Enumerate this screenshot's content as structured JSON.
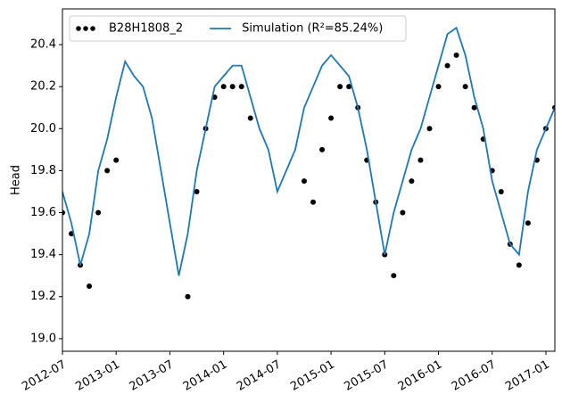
{
  "chart_data": {
    "type": "line",
    "ylabel": "Head",
    "x": [
      "2012-07",
      "2012-08",
      "2012-09",
      "2012-10",
      "2012-11",
      "2012-12",
      "2013-01",
      "2013-02",
      "2013-03",
      "2013-04",
      "2013-05",
      "2013-06",
      "2013-07",
      "2013-08",
      "2013-09",
      "2013-10",
      "2013-11",
      "2013-12",
      "2014-01",
      "2014-02",
      "2014-03",
      "2014-04",
      "2014-05",
      "2014-06",
      "2014-07",
      "2014-08",
      "2014-09",
      "2014-10",
      "2014-11",
      "2014-12",
      "2015-01",
      "2015-02",
      "2015-03",
      "2015-04",
      "2015-05",
      "2015-06",
      "2015-07",
      "2015-08",
      "2015-09",
      "2015-10",
      "2015-11",
      "2015-12",
      "2016-01",
      "2016-02",
      "2016-03",
      "2016-04",
      "2016-05",
      "2016-06",
      "2016-07",
      "2016-08",
      "2016-09",
      "2016-10",
      "2016-11",
      "2016-12",
      "2017-01",
      "2017-02"
    ],
    "series": [
      {
        "name": "B28H1808_2",
        "color": "#000000",
        "style": "dots",
        "values": [
          19.6,
          19.5,
          19.35,
          19.25,
          19.6,
          19.8,
          19.85,
          null,
          null,
          null,
          null,
          null,
          null,
          null,
          19.2,
          19.7,
          20.0,
          20.15,
          20.2,
          20.2,
          20.2,
          20.05,
          null,
          null,
          null,
          null,
          null,
          19.75,
          19.65,
          19.9,
          20.05,
          20.2,
          20.2,
          20.1,
          19.85,
          19.65,
          19.4,
          19.3,
          19.6,
          19.75,
          19.85,
          20.0,
          20.2,
          20.3,
          20.35,
          20.2,
          20.1,
          19.95,
          19.8,
          19.7,
          19.45,
          19.35,
          19.55,
          19.85,
          20.0,
          20.1
        ]
      },
      {
        "name": "Simulation (R²=85.24%)",
        "color": "#1f77b4",
        "style": "line",
        "values": [
          19.7,
          19.55,
          19.35,
          19.5,
          19.8,
          19.95,
          20.15,
          20.32,
          20.25,
          20.2,
          20.05,
          19.8,
          19.55,
          19.3,
          19.5,
          19.8,
          20.0,
          20.2,
          20.25,
          20.3,
          20.3,
          20.15,
          20.0,
          19.9,
          19.7,
          19.8,
          19.9,
          20.1,
          20.2,
          20.3,
          20.35,
          20.3,
          20.25,
          20.1,
          19.9,
          19.65,
          19.4,
          19.6,
          19.75,
          19.9,
          20.0,
          20.15,
          20.3,
          20.45,
          20.48,
          20.35,
          20.15,
          20.0,
          19.75,
          19.6,
          19.45,
          19.4,
          19.7,
          19.9,
          20.0,
          20.1
        ]
      }
    ],
    "xlim": [
      "2012-07",
      "2017-02"
    ],
    "xticks": [
      "2012-07",
      "2013-01",
      "2013-07",
      "2014-01",
      "2014-07",
      "2015-01",
      "2015-07",
      "2016-01",
      "2016-07",
      "2017-01"
    ],
    "ylim": [
      18.94,
      20.57
    ],
    "yticks": [
      {
        "value": 19.0,
        "label": "19.0"
      },
      {
        "value": 19.2,
        "label": "19.2"
      },
      {
        "value": 19.4,
        "label": "19.4"
      },
      {
        "value": 19.6,
        "label": "19.6"
      },
      {
        "value": 19.8,
        "label": "19.8"
      },
      {
        "value": 20.0,
        "label": "20.0"
      },
      {
        "value": 20.2,
        "label": "20.2"
      },
      {
        "value": 20.4,
        "label": "20.4"
      }
    ],
    "legend": "upper-left"
  }
}
